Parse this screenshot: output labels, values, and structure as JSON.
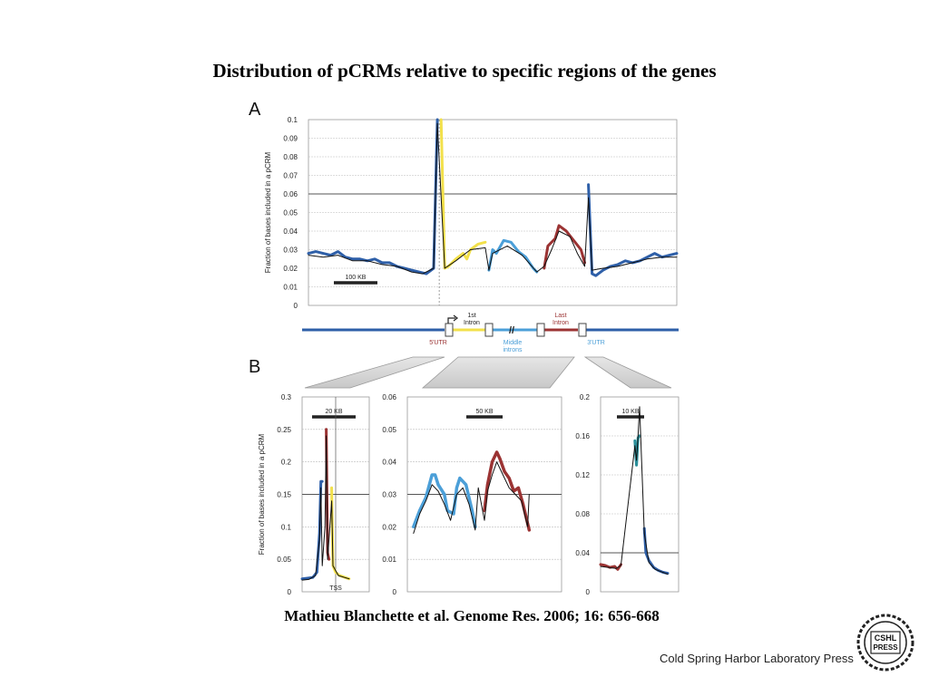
{
  "slide": {
    "title": "Distribution of  pCRMs relative to specific regions of the genes",
    "citation": "Mathieu Blanchette et al. Genome Res. 2006; 16: 656-668",
    "publisher": "Cold Spring Harbor Laboratory Press",
    "logo_text": [
      "CSHL",
      "PRESS"
    ]
  },
  "colors": {
    "dark_blue": "#2e5fa8",
    "light_blue": "#4b9fd8",
    "yellow": "#f2e04a",
    "red": "#9b3333",
    "teal": "#2a8f9a",
    "black_line": "#111111"
  },
  "chart_data": [
    {
      "panel": "A",
      "type": "line",
      "ylabel": "Fraction of bases included in a pCRM",
      "yticks": [
        "0.1",
        "0.09",
        "0.08",
        "0.07",
        "0.06",
        "0.05",
        "0.04",
        "0.03",
        "0.02",
        "0.01",
        "0"
      ],
      "ylim": [
        0,
        0.1
      ],
      "xlim": [
        0,
        100
      ],
      "scale_bar": "100 KB",
      "grid": true,
      "series": [
        {
          "color": "dark_blue",
          "points": [
            [
              0,
              0.028
            ],
            [
              2,
              0.029
            ],
            [
              4,
              0.028
            ],
            [
              6,
              0.027
            ],
            [
              8,
              0.029
            ],
            [
              10,
              0.026
            ],
            [
              12,
              0.025
            ],
            [
              14,
              0.025
            ],
            [
              16,
              0.024
            ],
            [
              18,
              0.025
            ],
            [
              20,
              0.023
            ],
            [
              22,
              0.023
            ],
            [
              24,
              0.021
            ],
            [
              26,
              0.02
            ],
            [
              28,
              0.019
            ],
            [
              30,
              0.018
            ],
            [
              32,
              0.017
            ],
            [
              34,
              0.02
            ],
            [
              35,
              0.1
            ]
          ]
        },
        {
          "color": "yellow",
          "points": [
            [
              36,
              0.1
            ],
            [
              37,
              0.02
            ],
            [
              38,
              0.021
            ],
            [
              40,
              0.025
            ],
            [
              42,
              0.028
            ],
            [
              43,
              0.025
            ],
            [
              44,
              0.03
            ],
            [
              46,
              0.033
            ],
            [
              48,
              0.034
            ]
          ]
        },
        {
          "color": "light_blue",
          "points": [
            [
              49,
              0.019
            ],
            [
              50,
              0.03
            ],
            [
              51,
              0.028
            ],
            [
              53,
              0.035
            ],
            [
              55,
              0.034
            ],
            [
              57,
              0.029
            ],
            [
              59,
              0.026
            ],
            [
              61,
              0.02
            ],
            [
              62,
              0.018
            ]
          ]
        },
        {
          "color": "red",
          "points": [
            [
              64,
              0.02
            ],
            [
              65,
              0.032
            ],
            [
              67,
              0.036
            ],
            [
              68,
              0.043
            ],
            [
              70,
              0.04
            ],
            [
              72,
              0.035
            ],
            [
              74,
              0.03
            ],
            [
              75,
              0.023
            ]
          ]
        },
        {
          "color": "dark_blue",
          "points": [
            [
              76,
              0.065
            ],
            [
              77,
              0.017
            ],
            [
              78,
              0.016
            ],
            [
              80,
              0.019
            ],
            [
              82,
              0.021
            ],
            [
              84,
              0.022
            ],
            [
              86,
              0.024
            ],
            [
              88,
              0.023
            ],
            [
              90,
              0.024
            ],
            [
              92,
              0.026
            ],
            [
              94,
              0.028
            ],
            [
              96,
              0.026
            ],
            [
              98,
              0.027
            ],
            [
              100,
              0.028
            ]
          ]
        },
        {
          "color": "black_line",
          "points": [
            [
              0,
              0.027
            ],
            [
              4,
              0.026
            ],
            [
              8,
              0.027
            ],
            [
              12,
              0.024
            ],
            [
              16,
              0.024
            ],
            [
              20,
              0.022
            ],
            [
              24,
              0.021
            ],
            [
              28,
              0.018
            ],
            [
              31,
              0.017
            ],
            [
              34,
              0.02
            ],
            [
              35,
              0.098
            ],
            [
              37,
              0.02
            ],
            [
              40,
              0.024
            ],
            [
              44,
              0.03
            ],
            [
              48,
              0.031
            ],
            [
              49,
              0.019
            ],
            [
              50,
              0.028
            ],
            [
              54,
              0.032
            ],
            [
              58,
              0.027
            ],
            [
              62,
              0.018
            ],
            [
              64,
              0.021
            ],
            [
              66,
              0.03
            ],
            [
              68,
              0.04
            ],
            [
              71,
              0.037
            ],
            [
              73,
              0.028
            ],
            [
              75,
              0.021
            ],
            [
              76,
              0.058
            ],
            [
              77,
              0.019
            ],
            [
              80,
              0.02
            ],
            [
              84,
              0.021
            ],
            [
              88,
              0.023
            ],
            [
              92,
              0.025
            ],
            [
              96,
              0.026
            ],
            [
              100,
              0.026
            ]
          ]
        }
      ]
    },
    {
      "panel": "B-left",
      "type": "line",
      "ylabel": "Fraction of bases included in a pCRM",
      "yticks": [
        "0.3",
        "0.25",
        "0.2",
        "0.15",
        "0.1",
        "0.05",
        "0"
      ],
      "ylim": [
        0,
        0.3
      ],
      "xlim": [
        0,
        100
      ],
      "scale_bar": "20 KB",
      "annotation": "TSS",
      "series": [
        {
          "color": "dark_blue",
          "points": [
            [
              0,
              0.02
            ],
            [
              8,
              0.021
            ],
            [
              16,
              0.022
            ],
            [
              22,
              0.03
            ],
            [
              26,
              0.09
            ],
            [
              28,
              0.17
            ],
            [
              30,
              0.17
            ]
          ]
        },
        {
          "color": "red",
          "points": [
            [
              36,
              0.25
            ],
            [
              38,
              0.06
            ],
            [
              40,
              0.05
            ]
          ]
        },
        {
          "color": "yellow",
          "points": [
            [
              44,
              0.16
            ],
            [
              46,
              0.04
            ],
            [
              50,
              0.03
            ],
            [
              56,
              0.025
            ],
            [
              64,
              0.022
            ],
            [
              70,
              0.02
            ]
          ]
        },
        {
          "color": "black_line",
          "points": [
            [
              0,
              0.018
            ],
            [
              10,
              0.019
            ],
            [
              20,
              0.025
            ],
            [
              26,
              0.08
            ],
            [
              28,
              0.16
            ],
            [
              30,
              0.04
            ],
            [
              34,
              0.1
            ],
            [
              36,
              0.24
            ],
            [
              38,
              0.05
            ],
            [
              44,
              0.14
            ],
            [
              46,
              0.04
            ],
            [
              54,
              0.025
            ],
            [
              70,
              0.02
            ]
          ]
        }
      ]
    },
    {
      "panel": "B-middle",
      "type": "line",
      "yticks": [
        "0.06",
        "0.05",
        "0.04",
        "0.03",
        "0.02",
        "0.01",
        "0"
      ],
      "ylim": [
        0,
        0.06
      ],
      "xlim": [
        0,
        100
      ],
      "scale_bar": "50 KB",
      "series": [
        {
          "color": "light_blue",
          "points": [
            [
              4,
              0.02
            ],
            [
              8,
              0.025
            ],
            [
              12,
              0.029
            ],
            [
              16,
              0.036
            ],
            [
              18,
              0.036
            ],
            [
              20,
              0.033
            ],
            [
              24,
              0.03
            ],
            [
              26,
              0.025
            ],
            [
              30,
              0.024
            ],
            [
              32,
              0.032
            ],
            [
              34,
              0.035
            ],
            [
              38,
              0.033
            ],
            [
              40,
              0.029
            ],
            [
              42,
              0.025
            ],
            [
              44,
              0.02
            ]
          ]
        },
        {
          "color": "red",
          "points": [
            [
              50,
              0.025
            ],
            [
              52,
              0.033
            ],
            [
              55,
              0.04
            ],
            [
              58,
              0.043
            ],
            [
              60,
              0.041
            ],
            [
              63,
              0.037
            ],
            [
              66,
              0.035
            ],
            [
              69,
              0.031
            ],
            [
              72,
              0.032
            ],
            [
              75,
              0.027
            ],
            [
              77,
              0.023
            ],
            [
              79,
              0.019
            ]
          ]
        },
        {
          "color": "black_line",
          "points": [
            [
              4,
              0.018
            ],
            [
              8,
              0.024
            ],
            [
              12,
              0.028
            ],
            [
              16,
              0.033
            ],
            [
              20,
              0.031
            ],
            [
              24,
              0.027
            ],
            [
              28,
              0.022
            ],
            [
              32,
              0.03
            ],
            [
              36,
              0.032
            ],
            [
              40,
              0.027
            ],
            [
              44,
              0.019
            ],
            [
              46,
              0.032
            ],
            [
              50,
              0.022
            ],
            [
              52,
              0.031
            ],
            [
              55,
              0.036
            ],
            [
              58,
              0.04
            ],
            [
              62,
              0.036
            ],
            [
              66,
              0.032
            ],
            [
              70,
              0.03
            ],
            [
              74,
              0.028
            ],
            [
              78,
              0.02
            ],
            [
              79,
              0.03
            ]
          ]
        }
      ]
    },
    {
      "panel": "B-right",
      "type": "line",
      "yticks": [
        "0.2",
        "0.16",
        "0.12",
        "0.08",
        "0.04",
        "0"
      ],
      "ylim": [
        0,
        0.2
      ],
      "xlim": [
        0,
        100
      ],
      "scale_bar": "10 KB",
      "series": [
        {
          "color": "red",
          "points": [
            [
              0,
              0.028
            ],
            [
              6,
              0.027
            ],
            [
              12,
              0.025
            ],
            [
              18,
              0.026
            ],
            [
              22,
              0.023
            ],
            [
              26,
              0.028
            ]
          ]
        },
        {
          "color": "teal",
          "points": [
            [
              44,
              0.155
            ],
            [
              46,
              0.13
            ],
            [
              48,
              0.158
            ],
            [
              50,
              0.16
            ]
          ]
        },
        {
          "color": "dark_blue",
          "points": [
            [
              56,
              0.065
            ],
            [
              58,
              0.04
            ],
            [
              62,
              0.032
            ],
            [
              68,
              0.025
            ],
            [
              74,
              0.022
            ],
            [
              80,
              0.02
            ],
            [
              86,
              0.019
            ]
          ]
        },
        {
          "color": "black_line",
          "points": [
            [
              0,
              0.026
            ],
            [
              10,
              0.025
            ],
            [
              20,
              0.024
            ],
            [
              26,
              0.027
            ],
            [
              44,
              0.15
            ],
            [
              46,
              0.135
            ],
            [
              48,
              0.16
            ],
            [
              50,
              0.19
            ],
            [
              56,
              0.06
            ],
            [
              62,
              0.03
            ],
            [
              70,
              0.023
            ],
            [
              86,
              0.018
            ]
          ]
        }
      ]
    }
  ],
  "gene_diagram": {
    "labels": {
      "utr5": "5'UTR",
      "first_intron": [
        "1st",
        "Intron"
      ],
      "middle_introns": [
        "Middle",
        "introns"
      ],
      "last_intron": [
        "Last",
        "Intron"
      ],
      "utr3": "3'UTR",
      "break_mark": "//"
    }
  },
  "panel_labels": {
    "a": "A",
    "b": "B"
  }
}
